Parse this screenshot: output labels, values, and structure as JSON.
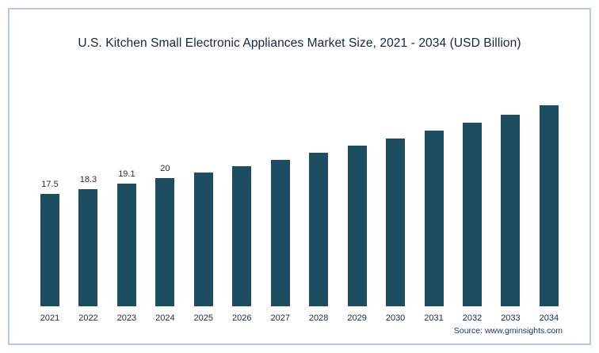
{
  "title": "U.S. Kitchen Small Electronic Appliances Market Size, 2021 - 2034 (USD Billion)",
  "source_label": "Source: www.gminsights.com",
  "colors": {
    "bar": "#1d4d60",
    "frame_border": "#b9c8ea",
    "title_text": "#17263f"
  },
  "chart_data": {
    "type": "bar",
    "title": "U.S. Kitchen Small Electronic Appliances Market Size, 2021 - 2034 (USD Billion)",
    "xlabel": "",
    "ylabel": "",
    "categories": [
      "2021",
      "2022",
      "2023",
      "2024",
      "2025",
      "2026",
      "2027",
      "2028",
      "2029",
      "2030",
      "2031",
      "2032",
      "2033",
      "2034"
    ],
    "values": [
      17.5,
      18.3,
      19.1,
      20,
      20.9,
      21.9,
      22.9,
      23.9,
      25.0,
      26.2,
      27.4,
      28.6,
      29.9,
      31.3
    ],
    "data_labels": [
      "17.5",
      "18.3",
      "19.1",
      "20",
      "",
      "",
      "",
      "",
      "",
      "",
      "",
      "",
      "",
      ""
    ],
    "ylim": [
      0,
      35
    ],
    "grid": false,
    "legend": false,
    "source": "Source: www.gminsights.com"
  }
}
